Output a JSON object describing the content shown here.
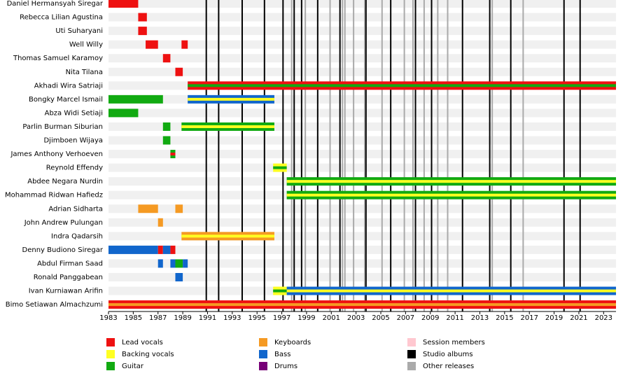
{
  "chart_data": {
    "type": "timeline",
    "legend": [
      {
        "name": "Lead vocals",
        "color": "#ee1111"
      },
      {
        "name": "Backing vocals",
        "color": "#ffff22"
      },
      {
        "name": "Guitar",
        "color": "#11aa11"
      },
      {
        "name": "Keyboards",
        "color": "#f59a23"
      },
      {
        "name": "Bass",
        "color": "#1166cc"
      },
      {
        "name": "Drums",
        "color": "#770077"
      },
      {
        "name": "Session members",
        "color": "#ffc8d0"
      },
      {
        "name": "Studio albums",
        "color": "#000000"
      },
      {
        "name": "Other releases",
        "color": "#aaaaaa"
      }
    ],
    "members": [
      {
        "name": "Daniel Hermansyah Siregar",
        "segments": [
          {
            "roles": [
              "Lead vocals"
            ],
            "start": 1983,
            "end": 1985.4
          }
        ]
      },
      {
        "name": "Rebecca Lilian Agustina",
        "segments": [
          {
            "roles": [
              "Lead vocals"
            ],
            "start": 1985.4,
            "end": 1986.1
          }
        ]
      },
      {
        "name": "Uti Suharyani",
        "segments": [
          {
            "roles": [
              "Lead vocals"
            ],
            "start": 1985.4,
            "end": 1986.1
          }
        ]
      },
      {
        "name": "Well Willy",
        "segments": [
          {
            "roles": [
              "Lead vocals"
            ],
            "start": 1986,
            "end": 1987
          },
          {
            "roles": [
              "Lead vocals"
            ],
            "start": 1988.9,
            "end": 1989.4
          }
        ]
      },
      {
        "name": "Thomas Samuel Karamoy",
        "segments": [
          {
            "roles": [
              "Lead vocals"
            ],
            "start": 1987.4,
            "end": 1988
          }
        ]
      },
      {
        "name": "Nita Tilana",
        "segments": [
          {
            "roles": [
              "Lead vocals"
            ],
            "start": 1988.4,
            "end": 1989
          }
        ]
      },
      {
        "name": "Akhadi Wira Satriaji",
        "segments": [
          {
            "roles": [
              "Lead vocals",
              "Guitar"
            ],
            "start": 1989.4,
            "end": 2024
          }
        ]
      },
      {
        "name": "Bongky Marcel Ismail",
        "segments": [
          {
            "roles": [
              "Guitar"
            ],
            "start": 1983,
            "end": 1987.4
          },
          {
            "roles": [
              "Bass",
              "Backing vocals"
            ],
            "start": 1989.4,
            "end": 1996.4
          }
        ]
      },
      {
        "name": "Abza Widi Setiaji",
        "segments": [
          {
            "roles": [
              "Guitar"
            ],
            "start": 1983,
            "end": 1985.4
          }
        ]
      },
      {
        "name": "Parlin Burman Siburian",
        "segments": [
          {
            "roles": [
              "Guitar"
            ],
            "start": 1987.4,
            "end": 1988
          },
          {
            "roles": [
              "Guitar",
              "Backing vocals"
            ],
            "start": 1988.9,
            "end": 1996.4
          }
        ]
      },
      {
        "name": "Djimboen Wijaya",
        "segments": [
          {
            "roles": [
              "Guitar"
            ],
            "start": 1987.4,
            "end": 1988
          }
        ]
      },
      {
        "name": "James Anthony Verhoeven",
        "segments": [
          {
            "roles": [
              "Guitar",
              "Lead vocals"
            ],
            "start": 1988,
            "end": 1988.4
          }
        ]
      },
      {
        "name": "Reynold Effendy",
        "segments": [
          {
            "roles": [
              "Backing vocals",
              "Guitar"
            ],
            "start": 1996.3,
            "end": 1997.4
          }
        ]
      },
      {
        "name": "Abdee Negara Nurdin",
        "segments": [
          {
            "roles": [
              "Guitar",
              "Backing vocals"
            ],
            "start": 1997.4,
            "end": 2024
          }
        ]
      },
      {
        "name": "Mohammad Ridwan Hafiedz",
        "segments": [
          {
            "roles": [
              "Guitar",
              "Backing vocals"
            ],
            "start": 1997.4,
            "end": 2024
          }
        ]
      },
      {
        "name": "Adrian Sidharta",
        "segments": [
          {
            "roles": [
              "Keyboards"
            ],
            "start": 1985.4,
            "end": 1987
          },
          {
            "roles": [
              "Keyboards"
            ],
            "start": 1988.4,
            "end": 1989
          }
        ]
      },
      {
        "name": "John Andrew Pulungan",
        "segments": [
          {
            "roles": [
              "Keyboards"
            ],
            "start": 1987,
            "end": 1987.4
          }
        ]
      },
      {
        "name": "Indra Qadarsih",
        "segments": [
          {
            "roles": [
              "Keyboards",
              "Backing vocals"
            ],
            "start": 1988.9,
            "end": 1996.4
          }
        ]
      },
      {
        "name": "Denny Budiono Siregar",
        "segments": [
          {
            "roles": [
              "Bass"
            ],
            "start": 1983,
            "end": 1987
          },
          {
            "roles": [
              "Lead vocals"
            ],
            "start": 1987,
            "end": 1987.4
          },
          {
            "roles": [
              "Bass"
            ],
            "start": 1987.4,
            "end": 1988
          },
          {
            "roles": [
              "Lead vocals"
            ],
            "start": 1988,
            "end": 1988.4
          }
        ]
      },
      {
        "name": "Abdul Firman Saad",
        "segments": [
          {
            "roles": [
              "Bass"
            ],
            "start": 1987,
            "end": 1987.4
          },
          {
            "roles": [
              "Bass"
            ],
            "start": 1988,
            "end": 1988.4
          },
          {
            "roles": [
              "Guitar"
            ],
            "start": 1988.4,
            "end": 1989
          },
          {
            "roles": [
              "Bass"
            ],
            "start": 1989,
            "end": 1989.4
          }
        ]
      },
      {
        "name": "Ronald Panggabean",
        "segments": [
          {
            "roles": [
              "Bass"
            ],
            "start": 1988.4,
            "end": 1989
          }
        ]
      },
      {
        "name": "Ivan Kurniawan Arifin",
        "segments": [
          {
            "roles": [
              "Backing vocals",
              "Guitar"
            ],
            "start": 1996.3,
            "end": 1997.4
          },
          {
            "roles": [
              "Bass",
              "Backing vocals"
            ],
            "start": 1997.4,
            "end": 2024
          }
        ]
      },
      {
        "name": "Bimo Setiawan Almachzumi",
        "segments": [
          {
            "roles": [
              "Lead vocals",
              "Keyboards"
            ],
            "start": 1983,
            "end": 2024
          }
        ]
      }
    ],
    "studio_albums": [
      1990.9,
      1991.9,
      1993.8,
      1995.6,
      1997.1,
      1998,
      1998.6,
      1999.9,
      2001.7,
      2003.8,
      2005.8,
      2007.8,
      2009.1,
      2011.6,
      2013.8,
      2015.5,
      2019.8,
      2021.1
    ],
    "other_releases": [
      1997.8,
      1998.9,
      2000.9,
      2001.9,
      2002.1,
      2002.8,
      2003.7,
      2005.1,
      2006.9,
      2007.6,
      2008.5,
      2009.6,
      2010.4,
      2014,
      2016.5
    ],
    "xlim": [
      1983,
      2024
    ],
    "xticks": [
      1983,
      1985,
      1987,
      1989,
      1991,
      1993,
      1995,
      1997,
      1999,
      2001,
      2003,
      2005,
      2007,
      2009,
      2011,
      2013,
      2015,
      2017,
      2019,
      2021,
      2023
    ]
  }
}
